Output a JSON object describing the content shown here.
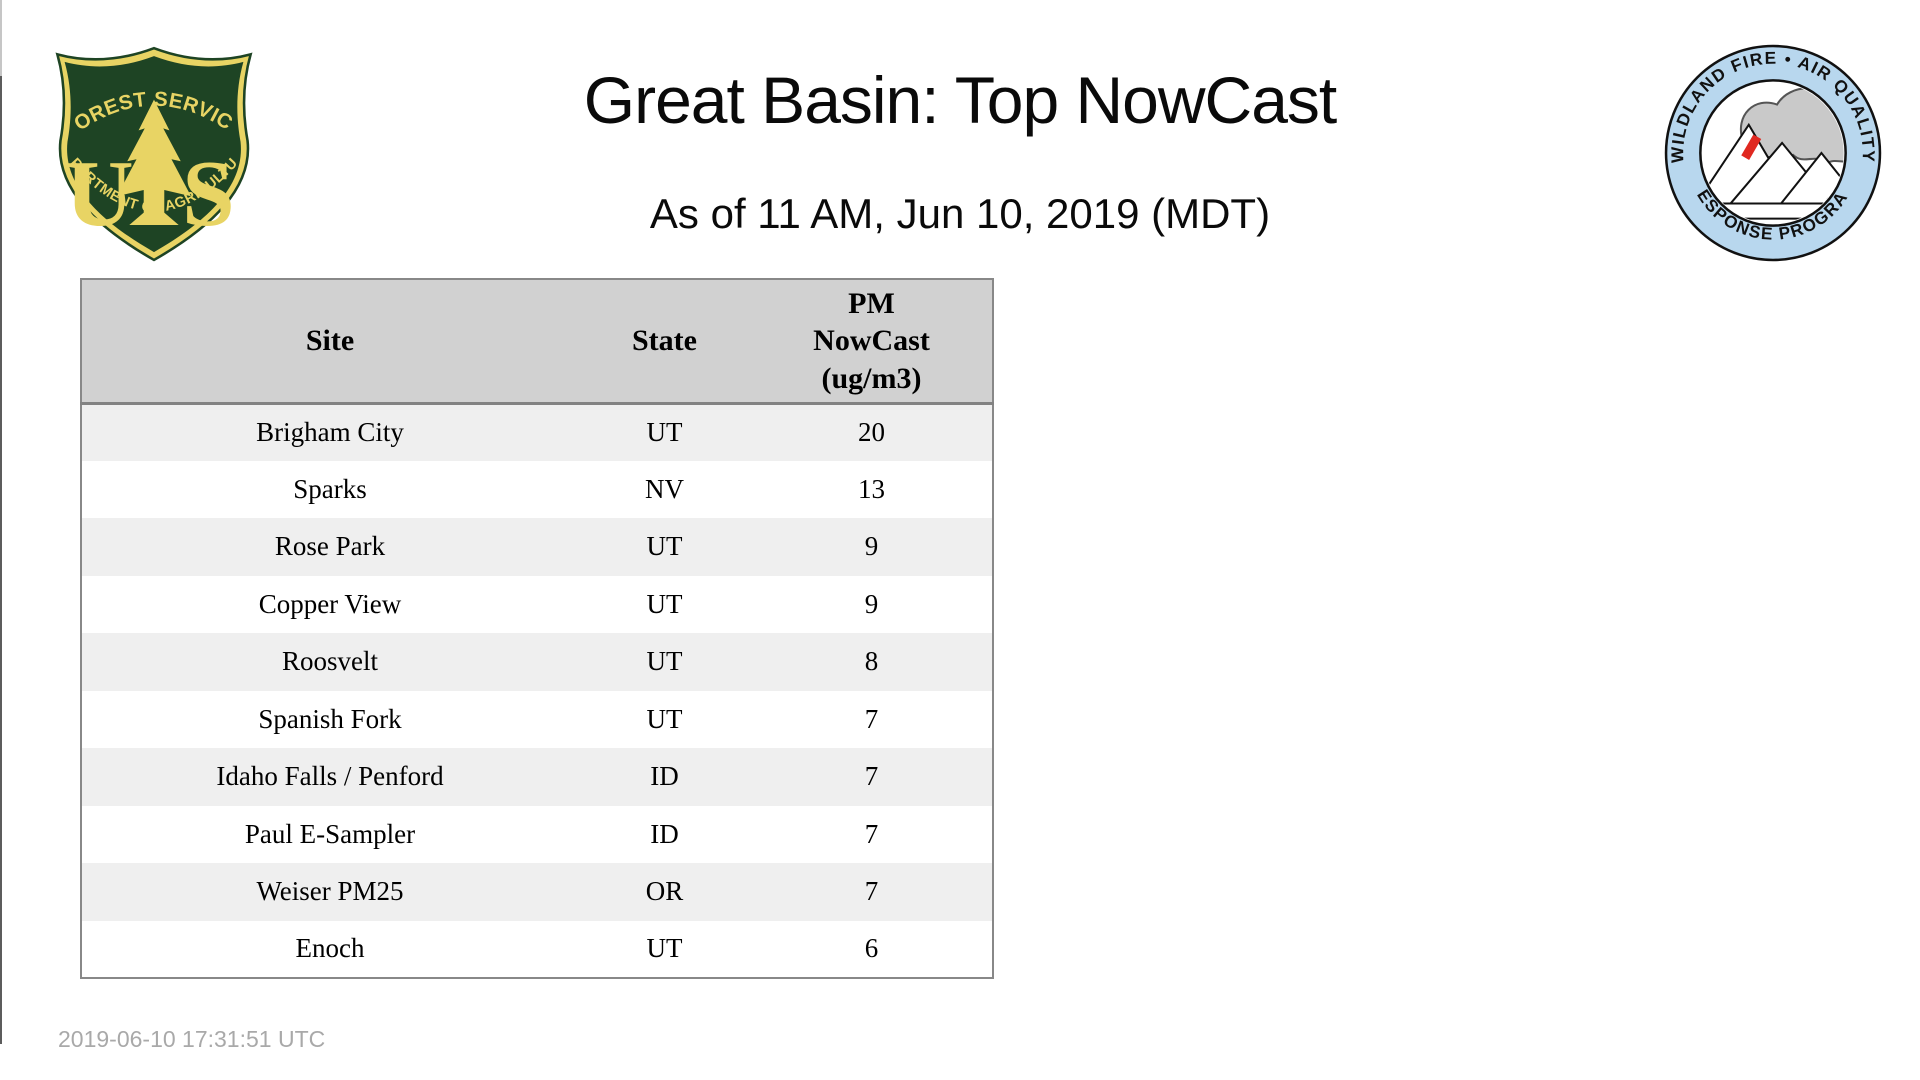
{
  "header": {
    "title": "Great Basin: Top NowCast",
    "subtitle": "As of 11 AM, Jun 10, 2019 (MDT)"
  },
  "logos": {
    "forest_service": {
      "arc_top": "FOREST SERVICE",
      "monogram_left": "U",
      "monogram_right": "S",
      "arc_bottom": "DEPARTMENT OF AGRICULTURE",
      "shield_green": "#1e4424",
      "shield_gold": "#e8d464"
    },
    "wfaqrp": {
      "arc_top": "WILDLAND FIRE • AIR QUALITY",
      "arc_bottom": "RESPONSE PROGRAM",
      "ring_blue": "#b8d7ee",
      "smoke_gray": "#c9c9c9",
      "flame_red": "#e02820"
    }
  },
  "table": {
    "columns": [
      "Site",
      "State",
      "PM NowCast (ug/m3)"
    ],
    "rows": [
      {
        "site": "Brigham City",
        "state": "UT",
        "value": "20"
      },
      {
        "site": "Sparks",
        "state": "NV",
        "value": "13"
      },
      {
        "site": "Rose Park",
        "state": "UT",
        "value": "9"
      },
      {
        "site": "Copper View",
        "state": "UT",
        "value": "9"
      },
      {
        "site": "Roosvelt",
        "state": "UT",
        "value": "8"
      },
      {
        "site": "Spanish Fork",
        "state": "UT",
        "value": "7"
      },
      {
        "site": "Idaho Falls / Penford",
        "state": "ID",
        "value": "7"
      },
      {
        "site": "Paul E-Sampler",
        "state": "ID",
        "value": "7"
      },
      {
        "site": "Weiser PM25",
        "state": "OR",
        "value": "7"
      },
      {
        "site": "Enoch",
        "state": "UT",
        "value": "6"
      }
    ]
  },
  "footer": {
    "timestamp": "2019-06-10 17:31:51 UTC"
  },
  "colors": {
    "table_header_bg": "#d1d1d1",
    "table_row_stripe": "#efefef",
    "table_border": "#888888",
    "footer_text": "#a9a9a9"
  }
}
